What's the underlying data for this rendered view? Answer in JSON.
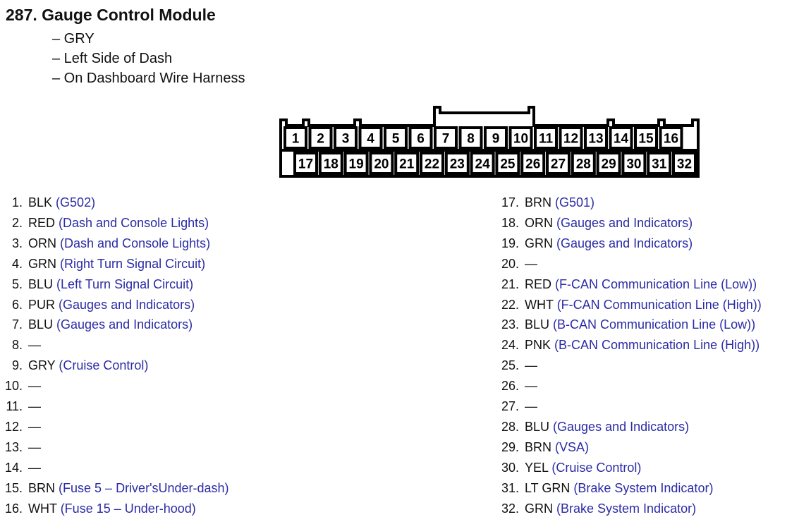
{
  "title": "287.  Gauge Control Module",
  "details": [
    "– GRY",
    "– Left Side of Dash",
    "– On Dashboard Wire Harness"
  ],
  "connector": {
    "top_row": [
      "1",
      "2",
      "3",
      "4",
      "5",
      "6",
      "7",
      "8",
      "9",
      "10",
      "11",
      "12",
      "13",
      "14",
      "15",
      "16"
    ],
    "bottom_row": [
      "17",
      "18",
      "19",
      "20",
      "21",
      "22",
      "23",
      "24",
      "25",
      "26",
      "27",
      "28",
      "29",
      "30",
      "31",
      "32"
    ]
  },
  "link_color": "#2b2ba6",
  "pins": [
    {
      "num": "1.",
      "color": "BLK",
      "circuit": "(G502)"
    },
    {
      "num": "2.",
      "color": "RED",
      "circuit": "(Dash and Console Lights)"
    },
    {
      "num": "3.",
      "color": "ORN",
      "circuit": "(Dash and Console Lights)"
    },
    {
      "num": "4.",
      "color": "GRN",
      "circuit": "(Right Turn Signal Circuit)"
    },
    {
      "num": "5.",
      "color": "BLU",
      "circuit": "(Left Turn Signal Circuit)"
    },
    {
      "num": "6.",
      "color": "PUR",
      "circuit": "(Gauges and Indicators)"
    },
    {
      "num": "7.",
      "color": "BLU",
      "circuit": "(Gauges and Indicators)"
    },
    {
      "num": "8.",
      "color": "—",
      "circuit": ""
    },
    {
      "num": "9.",
      "color": "GRY",
      "circuit": "(Cruise Control)"
    },
    {
      "num": "10.",
      "color": "—",
      "circuit": ""
    },
    {
      "num": "11.",
      "color": "—",
      "circuit": ""
    },
    {
      "num": "12.",
      "color": "—",
      "circuit": ""
    },
    {
      "num": "13.",
      "color": "—",
      "circuit": ""
    },
    {
      "num": "14.",
      "color": "—",
      "circuit": ""
    },
    {
      "num": "15.",
      "color": "BRN",
      "circuit": "(Fuse 5 – Driver'sUnder-dash)"
    },
    {
      "num": "16.",
      "color": "WHT",
      "circuit": "(Fuse 15 – Under-hood)"
    },
    {
      "num": "17.",
      "color": "BRN",
      "circuit": "(G501)"
    },
    {
      "num": "18.",
      "color": "ORN",
      "circuit": "(Gauges and Indicators)"
    },
    {
      "num": "19.",
      "color": "GRN",
      "circuit": "(Gauges and Indicators)"
    },
    {
      "num": "20.",
      "color": "—",
      "circuit": ""
    },
    {
      "num": "21.",
      "color": "RED",
      "circuit": "(F-CAN Communication Line (Low))"
    },
    {
      "num": "22.",
      "color": "WHT",
      "circuit": "(F-CAN Communication Line (High))"
    },
    {
      "num": "23.",
      "color": "BLU",
      "circuit": "(B-CAN Communication Line (Low))"
    },
    {
      "num": "24.",
      "color": "PNK",
      "circuit": "(B-CAN Communication Line (High))"
    },
    {
      "num": "25.",
      "color": "—",
      "circuit": ""
    },
    {
      "num": "26.",
      "color": "—",
      "circuit": ""
    },
    {
      "num": "27.",
      "color": "—",
      "circuit": ""
    },
    {
      "num": "28.",
      "color": "BLU",
      "circuit": "(Gauges and Indicators)"
    },
    {
      "num": "29.",
      "color": "BRN",
      "circuit": "(VSA)"
    },
    {
      "num": "30.",
      "color": "YEL",
      "circuit": "(Cruise Control)"
    },
    {
      "num": "31.",
      "color": "LT GRN",
      "circuit": "(Brake System Indicator)"
    },
    {
      "num": "32.",
      "color": "GRN",
      "circuit": "(Brake System Indicator)"
    }
  ]
}
